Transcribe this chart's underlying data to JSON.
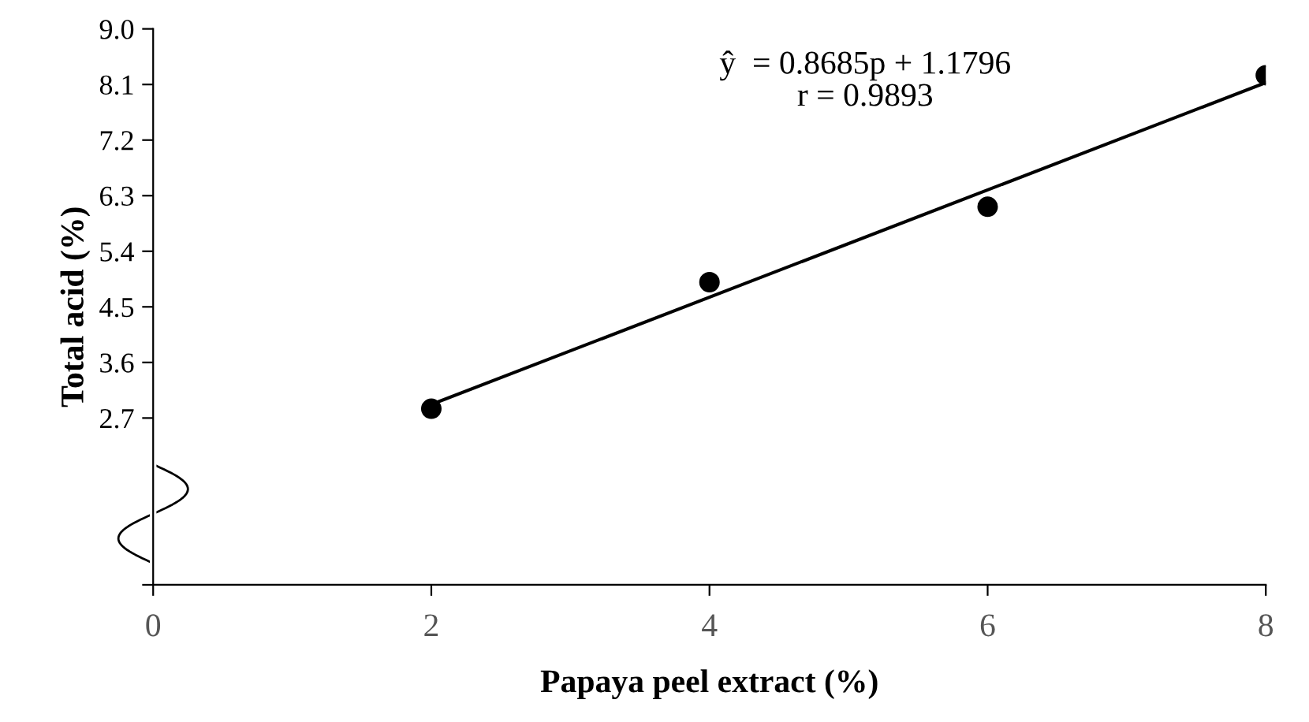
{
  "chart_data": {
    "type": "scatter",
    "xlabel": "Papaya peel extract (%)",
    "ylabel": "Total acid (%)",
    "x": [
      2,
      4,
      6,
      8
    ],
    "series": [
      {
        "color": "#000000",
        "values": [
          2.85,
          4.9,
          6.12,
          8.25
        ],
        "marker": "circle"
      },
      {
        "type": "line",
        "color": "#000000",
        "x": [
          2,
          8
        ],
        "values": [
          2.92,
          8.13
        ],
        "marker": "none",
        "line_style": "solid"
      }
    ],
    "xlim": [
      0,
      8
    ],
    "xticks": [
      0,
      2,
      4,
      6,
      8
    ],
    "ylim": [
      0,
      9.0
    ],
    "yticks": [
      {
        "value": 0,
        "label": null
      },
      2.7,
      3.6,
      4.5,
      5.4,
      6.3,
      7.2,
      8.1,
      {
        "value": 9.0,
        "label": "9.0"
      }
    ],
    "grid": false,
    "annotations": [
      "ŷ  = 0.8685p + 1.1796\nr = 0.9893"
    ]
  }
}
